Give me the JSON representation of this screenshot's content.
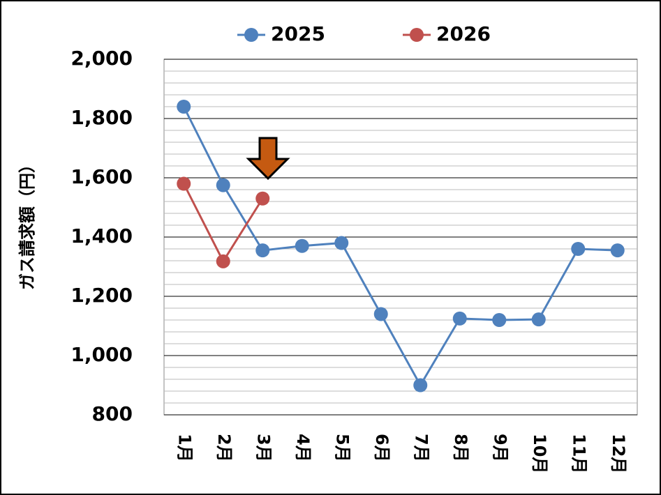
{
  "chart_data": {
    "type": "line",
    "y_axis_label": "ガス請求額（円）",
    "categories": [
      "1月",
      "2月",
      "3月",
      "4月",
      "5月",
      "6月",
      "7月",
      "8月",
      "9月",
      "10月",
      "11月",
      "12月"
    ],
    "series": [
      {
        "name": "2025",
        "color": "#4f81bd",
        "values": [
          1840,
          1575,
          1355,
          1370,
          1380,
          1140,
          900,
          1125,
          1120,
          1122,
          1360,
          1355
        ]
      },
      {
        "name": "2026",
        "color": "#c0504d",
        "values": [
          1580,
          1318,
          1530,
          null,
          null,
          null,
          null,
          null,
          null,
          null,
          null,
          null
        ]
      }
    ],
    "ylim": [
      800,
      2000
    ],
    "yticks": [
      800,
      {
        "value": 1000,
        "label": "1,000"
      },
      {
        "value": 1200,
        "label": "1,200"
      },
      {
        "value": 1400,
        "label": "1,400"
      },
      {
        "value": 1600,
        "label": "1,600"
      },
      {
        "value": 1800,
        "label": "1,800"
      },
      {
        "value": 2000,
        "label": "2,000"
      }
    ],
    "grid": true,
    "legend": "top"
  }
}
